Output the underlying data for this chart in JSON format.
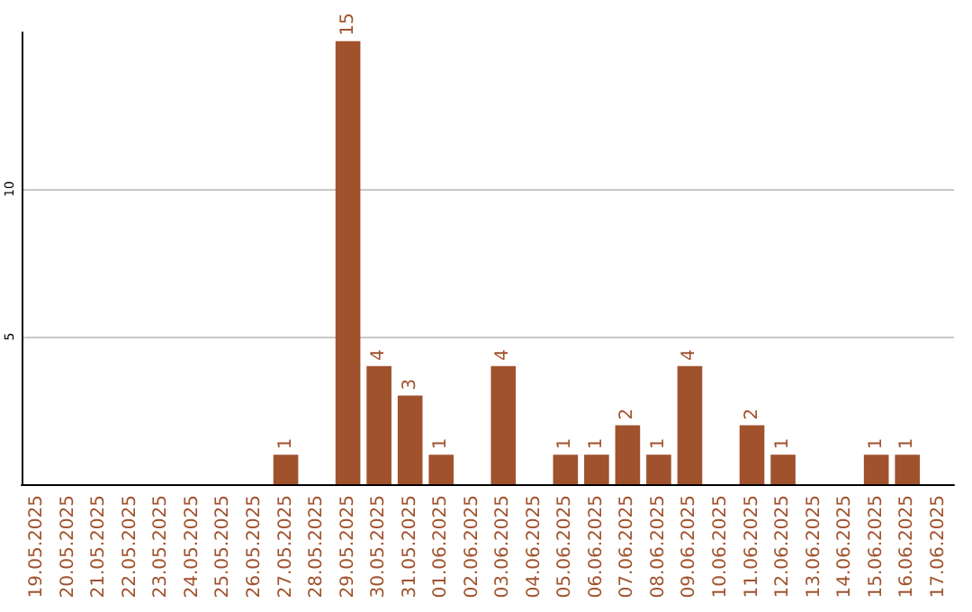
{
  "chart_data": {
    "type": "bar",
    "categories": [
      "19.05.2025",
      "20.05.2025",
      "21.05.2025",
      "22.05.2025",
      "23.05.2025",
      "24.05.2025",
      "25.05.2025",
      "26.05.2025",
      "27.05.2025",
      "28.05.2025",
      "29.05.2025",
      "30.05.2025",
      "31.05.2025",
      "01.06.2025",
      "02.06.2025",
      "03.06.2025",
      "04.06.2025",
      "05.06.2025",
      "06.06.2025",
      "07.06.2025",
      "08.06.2025",
      "09.06.2025",
      "10.06.2025",
      "11.06.2025",
      "12.06.2025",
      "13.06.2025",
      "14.06.2025",
      "15.06.2025",
      "16.06.2025",
      "17.06.2025"
    ],
    "values": [
      0,
      0,
      0,
      0,
      0,
      0,
      0,
      0,
      1,
      0,
      15,
      4,
      3,
      1,
      0,
      4,
      0,
      1,
      1,
      2,
      1,
      4,
      0,
      2,
      1,
      0,
      0,
      1,
      1,
      0
    ],
    "value_labels": [
      null,
      null,
      null,
      null,
      null,
      null,
      null,
      null,
      "1",
      null,
      "15",
      "4",
      "3",
      "1",
      null,
      "4",
      null,
      "1",
      "1",
      "2",
      "1",
      "4",
      null,
      "2",
      "1",
      null,
      null,
      "1",
      "1",
      null
    ],
    "color": "#a0522d",
    "ylim": [
      0,
      15.3
    ],
    "yticks": [
      5,
      10
    ],
    "grid": "y"
  }
}
